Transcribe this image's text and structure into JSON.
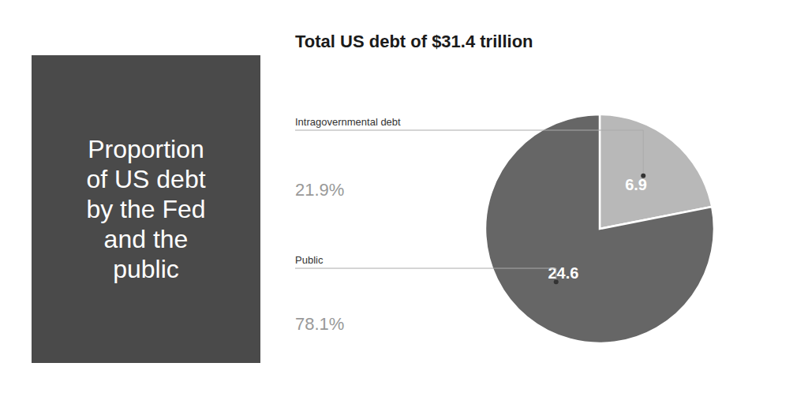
{
  "chart_data": {
    "type": "pie",
    "title": "Total US debt of $31.4 trillion",
    "annotations": [
      "Proportion\nof US debt\nby the Fed\nand the\npublic"
    ],
    "categories": [
      "Intragovernmental debt",
      "Public"
    ],
    "values": [
      6.9,
      24.6
    ],
    "colors": [
      "#b8b8b8",
      "#666666"
    ],
    "data_labels": true,
    "shares": [
      21.9,
      78.1
    ],
    "share_labels": [
      "21.9%",
      "78.1%"
    ]
  }
}
